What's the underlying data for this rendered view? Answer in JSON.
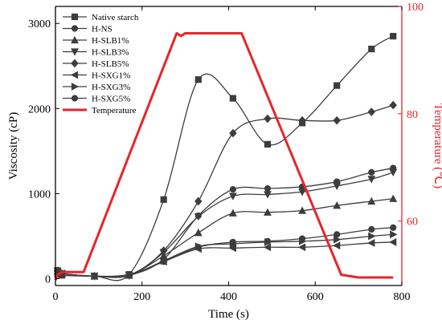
{
  "chart_data": {
    "type": "line",
    "xlabel": "Time (s)",
    "ylabel": "Viscosity (cP)",
    "y2label": "Temperature (℃)",
    "xlim": [
      0,
      800
    ],
    "ylim": [
      -80,
      3200
    ],
    "y2lim": [
      48,
      100
    ],
    "xticks": [
      0,
      200,
      400,
      600,
      800
    ],
    "yticks": [
      0,
      1000,
      2000,
      3000
    ],
    "y2ticks": [
      60,
      80,
      100
    ],
    "legend_position": "top-left",
    "series": [
      {
        "name": "Native starch",
        "marker": "square",
        "x": [
          5,
          15,
          90,
          170,
          250,
          330,
          410,
          490,
          570,
          650,
          730,
          780
        ],
        "y": [
          50,
          40,
          30,
          50,
          930,
          2340,
          2120,
          1580,
          1830,
          2270,
          2700,
          2850
        ]
      },
      {
        "name": "H-NS",
        "marker": "circle",
        "x": [
          5,
          15,
          90,
          170,
          250,
          330,
          410,
          490,
          570,
          650,
          730,
          780
        ],
        "y": [
          100,
          60,
          30,
          50,
          200,
          370,
          430,
          440,
          470,
          520,
          580,
          600
        ]
      },
      {
        "name": "H-SLB1%",
        "marker": "triangle-up",
        "x": [
          5,
          15,
          90,
          170,
          250,
          330,
          410,
          490,
          570,
          650,
          730,
          780
        ],
        "y": [
          90,
          60,
          30,
          40,
          270,
          540,
          770,
          780,
          800,
          860,
          910,
          940
        ]
      },
      {
        "name": "H-SLB3%",
        "marker": "triangle-down",
        "x": [
          5,
          15,
          90,
          170,
          250,
          330,
          410,
          490,
          570,
          650,
          730,
          780
        ],
        "y": [
          90,
          60,
          30,
          40,
          310,
          730,
          970,
          990,
          1020,
          1090,
          1170,
          1250
        ]
      },
      {
        "name": "H-SLB5%",
        "marker": "diamond",
        "x": [
          5,
          15,
          90,
          170,
          250,
          330,
          410,
          490,
          570,
          650,
          730,
          780
        ],
        "y": [
          90,
          60,
          30,
          40,
          330,
          910,
          1710,
          1880,
          1860,
          1860,
          1960,
          2040
        ]
      },
      {
        "name": "H-SXG1%",
        "marker": "triangle-left",
        "x": [
          5,
          15,
          90,
          170,
          250,
          330,
          410,
          490,
          570,
          650,
          730,
          780
        ],
        "y": [
          90,
          60,
          30,
          40,
          200,
          350,
          360,
          370,
          370,
          390,
          420,
          430
        ]
      },
      {
        "name": "H-SXG3%",
        "marker": "triangle-right",
        "x": [
          5,
          15,
          90,
          170,
          250,
          330,
          410,
          490,
          570,
          650,
          730,
          780
        ],
        "y": [
          90,
          60,
          30,
          40,
          210,
          380,
          410,
          430,
          440,
          460,
          500,
          520
        ]
      },
      {
        "name": "H-SXG5%",
        "marker": "circle",
        "x": [
          5,
          15,
          90,
          170,
          250,
          330,
          410,
          490,
          570,
          650,
          730,
          780
        ],
        "y": [
          90,
          60,
          30,
          40,
          230,
          740,
          1050,
          1060,
          1080,
          1140,
          1250,
          1300
        ]
      }
    ],
    "temperature": {
      "name": "Temperature",
      "color": "#e8242b",
      "x": [
        0,
        5,
        15,
        40,
        65,
        280,
        290,
        300,
        430,
        660,
        700,
        780
      ],
      "y": [
        49,
        50,
        50.5,
        50.5,
        50.5,
        95,
        94.5,
        95,
        95,
        50,
        49.5,
        49.5
      ]
    }
  }
}
